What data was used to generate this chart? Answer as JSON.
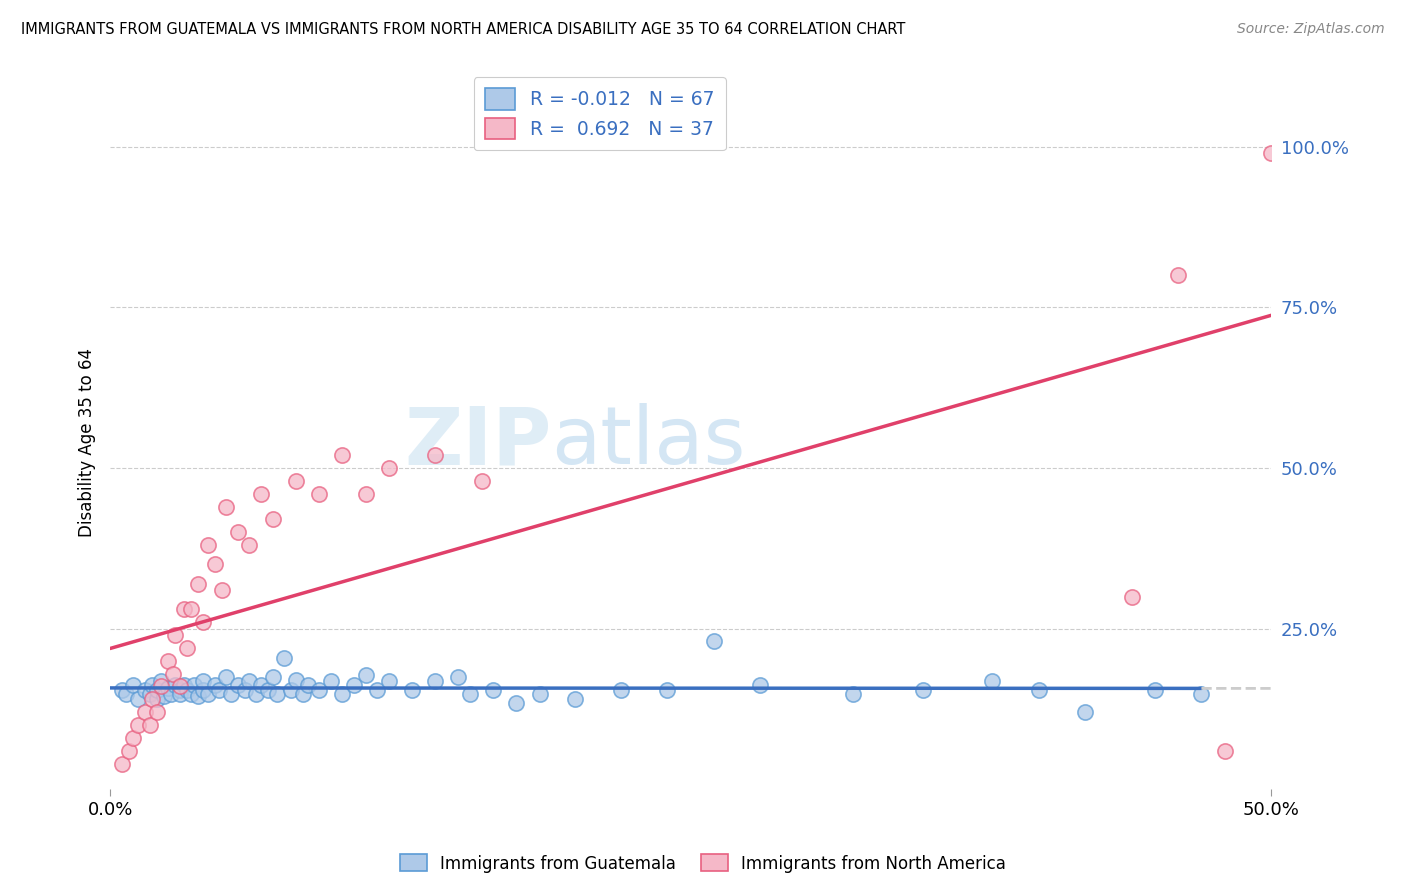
{
  "title": "IMMIGRANTS FROM GUATEMALA VS IMMIGRANTS FROM NORTH AMERICA DISABILITY AGE 35 TO 64 CORRELATION CHART",
  "source": "Source: ZipAtlas.com",
  "ylabel": "Disability Age 35 to 64",
  "xlim": [
    0.0,
    0.5
  ],
  "ylim": [
    0.0,
    1.08
  ],
  "ytick_labels": [
    "25.0%",
    "50.0%",
    "75.0%",
    "100.0%"
  ],
  "ytick_values": [
    0.25,
    0.5,
    0.75,
    1.0
  ],
  "blue_R": -0.012,
  "blue_N": 67,
  "pink_R": 0.692,
  "pink_N": 37,
  "blue_color": "#aec9e8",
  "pink_color": "#f5b8c8",
  "blue_edge_color": "#5b9bd5",
  "pink_edge_color": "#e86080",
  "blue_line_color": "#3a6fc0",
  "pink_line_color": "#e0406a",
  "blue_scatter": [
    [
      0.005,
      0.155
    ],
    [
      0.007,
      0.148
    ],
    [
      0.01,
      0.162
    ],
    [
      0.012,
      0.14
    ],
    [
      0.015,
      0.155
    ],
    [
      0.017,
      0.148
    ],
    [
      0.018,
      0.162
    ],
    [
      0.02,
      0.14
    ],
    [
      0.02,
      0.155
    ],
    [
      0.022,
      0.168
    ],
    [
      0.023,
      0.145
    ],
    [
      0.025,
      0.158
    ],
    [
      0.026,
      0.148
    ],
    [
      0.028,
      0.162
    ],
    [
      0.03,
      0.155
    ],
    [
      0.03,
      0.148
    ],
    [
      0.032,
      0.162
    ],
    [
      0.033,
      0.155
    ],
    [
      0.035,
      0.148
    ],
    [
      0.036,
      0.162
    ],
    [
      0.038,
      0.145
    ],
    [
      0.04,
      0.155
    ],
    [
      0.04,
      0.168
    ],
    [
      0.042,
      0.148
    ],
    [
      0.045,
      0.162
    ],
    [
      0.047,
      0.155
    ],
    [
      0.05,
      0.175
    ],
    [
      0.052,
      0.148
    ],
    [
      0.055,
      0.162
    ],
    [
      0.058,
      0.155
    ],
    [
      0.06,
      0.168
    ],
    [
      0.063,
      0.148
    ],
    [
      0.065,
      0.162
    ],
    [
      0.068,
      0.155
    ],
    [
      0.07,
      0.175
    ],
    [
      0.072,
      0.148
    ],
    [
      0.075,
      0.205
    ],
    [
      0.078,
      0.155
    ],
    [
      0.08,
      0.17
    ],
    [
      0.083,
      0.148
    ],
    [
      0.085,
      0.162
    ],
    [
      0.09,
      0.155
    ],
    [
      0.095,
      0.168
    ],
    [
      0.1,
      0.148
    ],
    [
      0.105,
      0.162
    ],
    [
      0.11,
      0.178
    ],
    [
      0.115,
      0.155
    ],
    [
      0.12,
      0.168
    ],
    [
      0.13,
      0.155
    ],
    [
      0.14,
      0.168
    ],
    [
      0.15,
      0.175
    ],
    [
      0.155,
      0.148
    ],
    [
      0.165,
      0.155
    ],
    [
      0.175,
      0.135
    ],
    [
      0.185,
      0.148
    ],
    [
      0.2,
      0.14
    ],
    [
      0.22,
      0.155
    ],
    [
      0.24,
      0.155
    ],
    [
      0.26,
      0.23
    ],
    [
      0.28,
      0.162
    ],
    [
      0.32,
      0.148
    ],
    [
      0.35,
      0.155
    ],
    [
      0.38,
      0.168
    ],
    [
      0.4,
      0.155
    ],
    [
      0.42,
      0.12
    ],
    [
      0.45,
      0.155
    ],
    [
      0.47,
      0.148
    ]
  ],
  "pink_scatter": [
    [
      0.005,
      0.04
    ],
    [
      0.008,
      0.06
    ],
    [
      0.01,
      0.08
    ],
    [
      0.012,
      0.1
    ],
    [
      0.015,
      0.12
    ],
    [
      0.017,
      0.1
    ],
    [
      0.018,
      0.14
    ],
    [
      0.02,
      0.12
    ],
    [
      0.022,
      0.16
    ],
    [
      0.025,
      0.2
    ],
    [
      0.027,
      0.18
    ],
    [
      0.028,
      0.24
    ],
    [
      0.03,
      0.16
    ],
    [
      0.032,
      0.28
    ],
    [
      0.033,
      0.22
    ],
    [
      0.035,
      0.28
    ],
    [
      0.038,
      0.32
    ],
    [
      0.04,
      0.26
    ],
    [
      0.042,
      0.38
    ],
    [
      0.045,
      0.35
    ],
    [
      0.048,
      0.31
    ],
    [
      0.05,
      0.44
    ],
    [
      0.055,
      0.4
    ],
    [
      0.06,
      0.38
    ],
    [
      0.065,
      0.46
    ],
    [
      0.07,
      0.42
    ],
    [
      0.08,
      0.48
    ],
    [
      0.09,
      0.46
    ],
    [
      0.1,
      0.52
    ],
    [
      0.11,
      0.46
    ],
    [
      0.12,
      0.5
    ],
    [
      0.14,
      0.52
    ],
    [
      0.16,
      0.48
    ],
    [
      0.44,
      0.3
    ],
    [
      0.46,
      0.8
    ],
    [
      0.48,
      0.06
    ],
    [
      0.5,
      0.99
    ]
  ],
  "watermark_zip": "ZIP",
  "watermark_atlas": "atlas",
  "legend_blue_label": "Immigrants from Guatemala",
  "legend_pink_label": "Immigrants from North America",
  "grid_color": "#cccccc",
  "background_color": "#ffffff"
}
